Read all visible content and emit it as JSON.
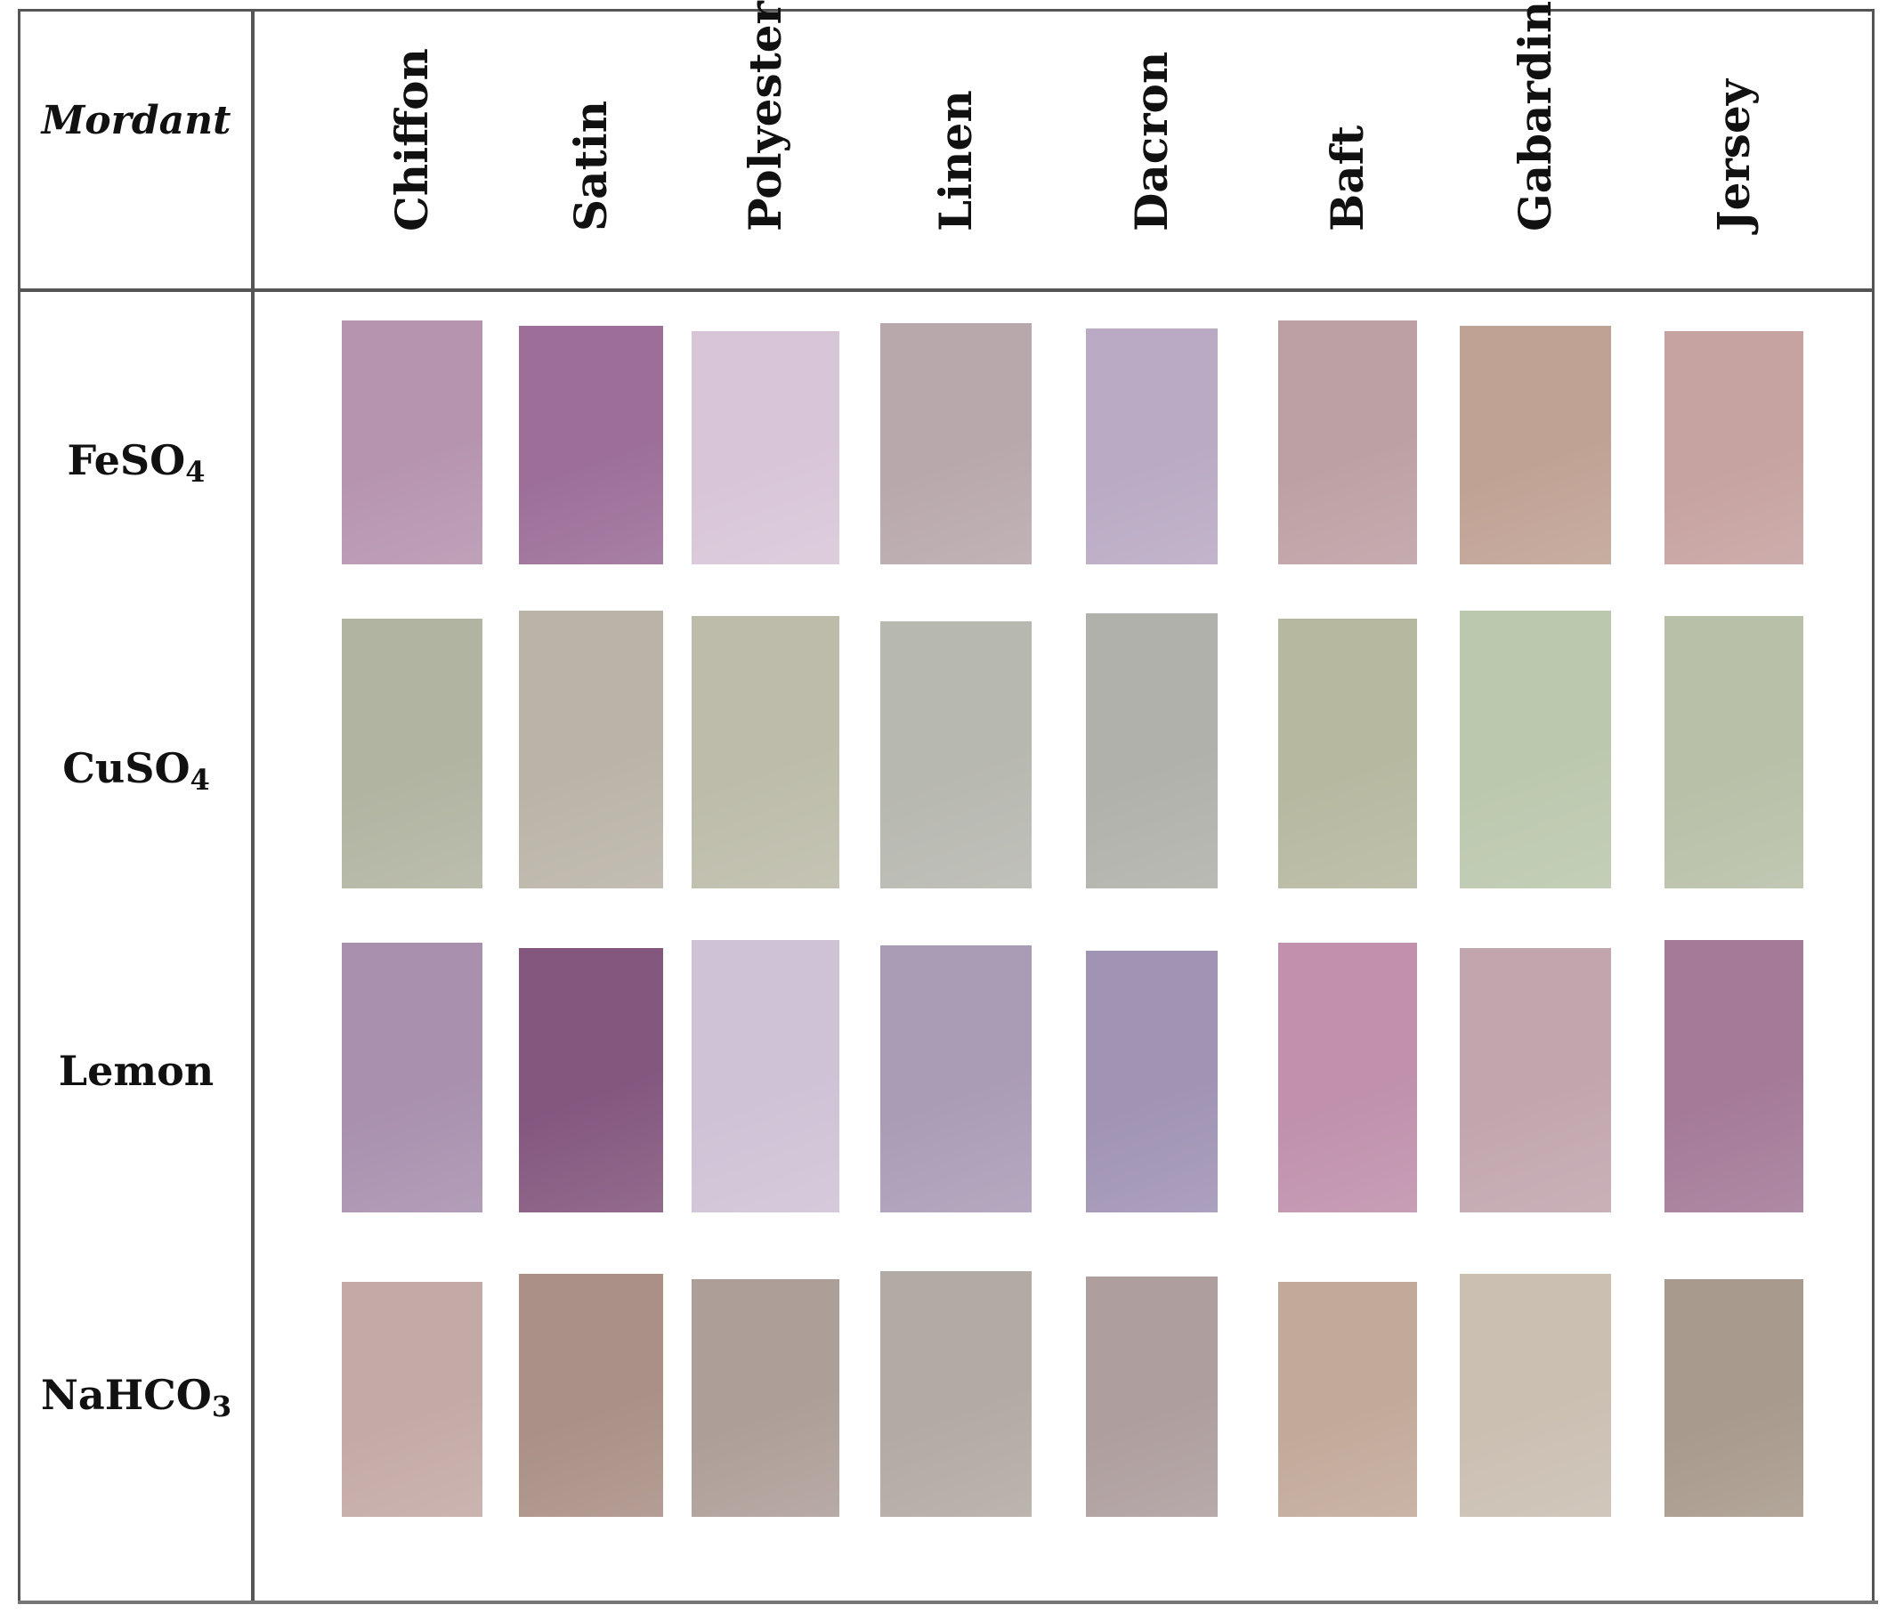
{
  "table": {
    "corner_label": "Mordant",
    "fabrics": [
      "Chiffon",
      "Satin",
      "Polyester",
      "Linen",
      "Dacron",
      "Baft",
      "Gabardine",
      "Jersey"
    ],
    "rows": [
      {
        "formula_main": "FeSO",
        "formula_sub": "4",
        "colors": [
          "#b694b0",
          "#9c6e98",
          "#d8c6d8",
          "#b8a8ac",
          "#baaac4",
          "#bda0a4",
          "#c0a294",
          "#c6a2a0"
        ]
      },
      {
        "formula_main": "CuSO",
        "formula_sub": "4",
        "colors": [
          "#b2b4a2",
          "#bab4a8",
          "#bdbcaa",
          "#b7b8b0",
          "#b0b1aa",
          "#b6b8a0",
          "#bcc8ae",
          "#b8c0a8"
        ]
      },
      {
        "formula_main": "Lemon",
        "formula_sub": "",
        "colors": [
          "#a890ae",
          "#84577f",
          "#d0c2d6",
          "#ab9cb6",
          "#a093b4",
          "#c090ac",
          "#c2a6ae",
          "#a47a98"
        ]
      },
      {
        "formula_main": "NaHCO",
        "formula_sub": "3",
        "colors": [
          "#c4aaa6",
          "#aa9086",
          "#ae9e98",
          "#b2aaa4",
          "#ae9e9e",
          "#c2aa9a",
          "#cbbfb2",
          "#a89a8c"
        ]
      }
    ]
  }
}
